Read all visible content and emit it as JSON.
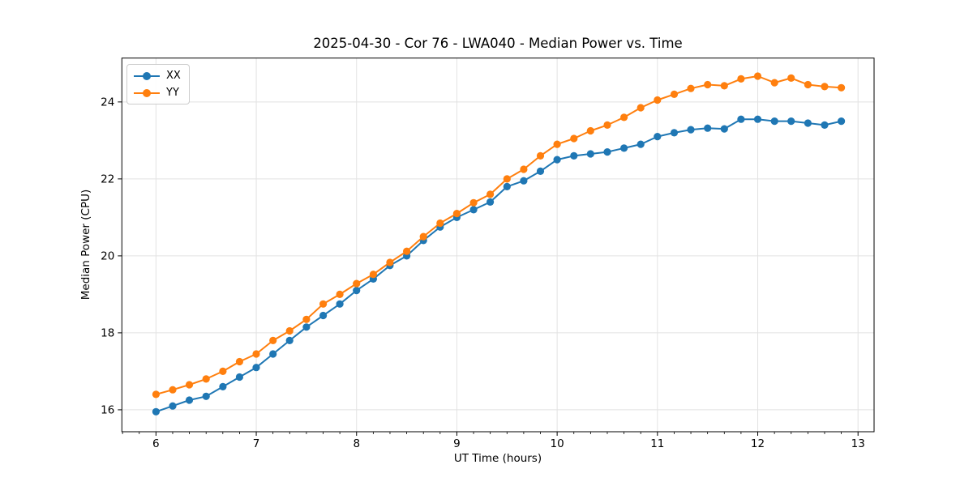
{
  "chart_data": {
    "type": "line",
    "title": "2025-04-30 - Cor 76 - LWA040 - Median Power vs. Time",
    "xlabel": "UT Time (hours)",
    "ylabel": "Median Power (CPU)",
    "xlim": [
      5.66,
      13.16
    ],
    "ylim": [
      15.43,
      25.14
    ],
    "xticks": [
      6,
      7,
      8,
      9,
      10,
      11,
      12,
      13
    ],
    "yticks": [
      16,
      18,
      20,
      22,
      24
    ],
    "x_minor_interval": 0.16667,
    "grid": true,
    "legend_position": "upper-left",
    "colors": {
      "grid": "#e2e2e2",
      "spine": "#000000",
      "background": "#ffffff"
    },
    "x": [
      6.0,
      6.167,
      6.333,
      6.5,
      6.667,
      6.833,
      7.0,
      7.167,
      7.333,
      7.5,
      7.667,
      7.833,
      8.0,
      8.167,
      8.333,
      8.5,
      8.667,
      8.833,
      9.0,
      9.167,
      9.333,
      9.5,
      9.667,
      9.833,
      10.0,
      10.167,
      10.333,
      10.5,
      10.667,
      10.833,
      11.0,
      11.167,
      11.333,
      11.5,
      11.667,
      11.833,
      12.0,
      12.167,
      12.333,
      12.5,
      12.667,
      12.833
    ],
    "series": [
      {
        "name": "XX",
        "color": "#1f77b4",
        "values": [
          15.95,
          16.1,
          16.25,
          16.35,
          16.6,
          16.85,
          17.1,
          17.45,
          17.8,
          18.15,
          18.45,
          18.75,
          19.1,
          19.4,
          19.75,
          20.0,
          20.4,
          20.75,
          21.0,
          21.2,
          21.4,
          21.8,
          21.95,
          22.2,
          22.5,
          22.6,
          22.65,
          22.7,
          22.8,
          22.9,
          23.1,
          23.2,
          23.28,
          23.32,
          23.3,
          23.55,
          23.55,
          23.5,
          23.5,
          23.45,
          23.4,
          23.5
        ]
      },
      {
        "name": "YY",
        "color": "#ff7f0e",
        "values": [
          16.4,
          16.52,
          16.65,
          16.8,
          17.0,
          17.25,
          17.45,
          17.8,
          18.05,
          18.35,
          18.75,
          19.0,
          19.28,
          19.52,
          19.83,
          20.12,
          20.5,
          20.85,
          21.1,
          21.38,
          21.6,
          22.0,
          22.25,
          22.6,
          22.9,
          23.05,
          23.25,
          23.4,
          23.6,
          23.85,
          24.05,
          24.2,
          24.35,
          24.45,
          24.42,
          24.6,
          24.67,
          24.5,
          24.62,
          24.45,
          24.4,
          24.37
        ]
      }
    ]
  }
}
